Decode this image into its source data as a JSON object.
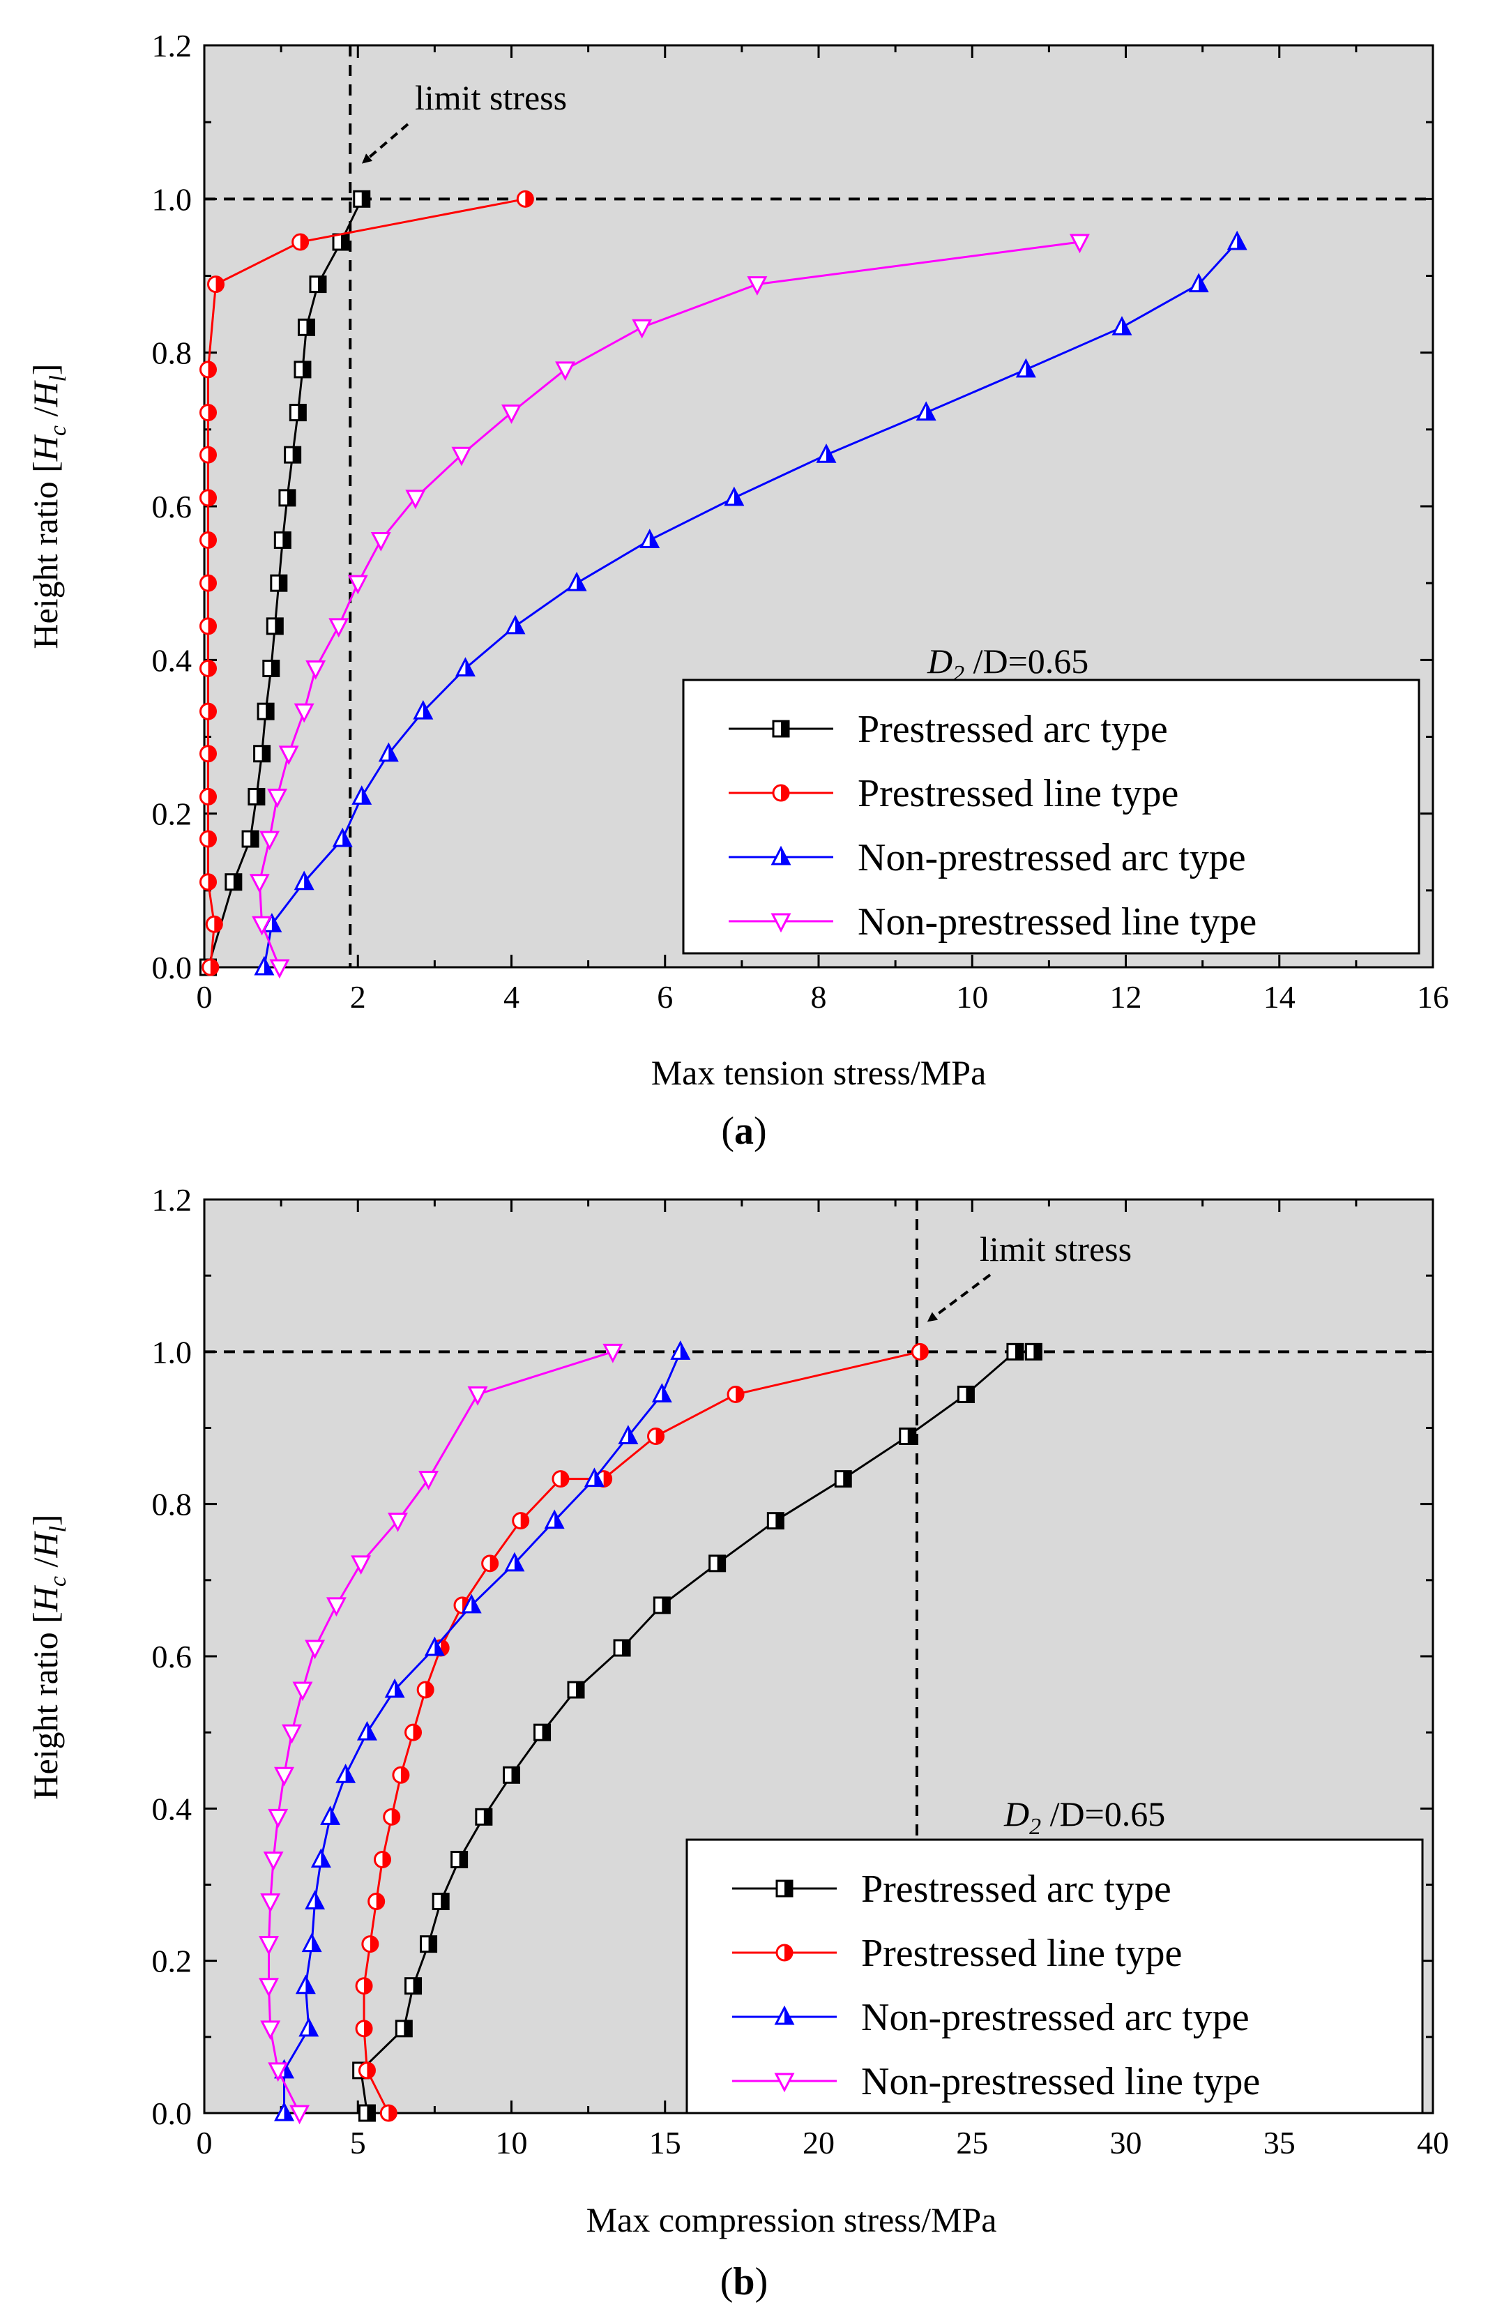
{
  "chart_data": [
    {
      "type": "line",
      "panel_label": "a",
      "xlabel": "Max tension stress/MPa",
      "ylabel_prefix": "Height ratio [",
      "ylabel_hc": "H",
      "ylabel_hc_sub": "c",
      "ylabel_sep": " /",
      "ylabel_hl": "H",
      "ylabel_hl_sub": "l",
      "ylabel_suffix": "]",
      "xlim": [
        0,
        16
      ],
      "ylim": [
        0,
        1.2
      ],
      "xticks": [
        0,
        2,
        4,
        6,
        8,
        10,
        12,
        14,
        16
      ],
      "yticks": [
        0.0,
        0.2,
        0.4,
        0.6,
        0.8,
        1.0,
        1.2
      ],
      "xtick_labels": [
        "0",
        "2",
        "4",
        "6",
        "8",
        "10",
        "12",
        "14",
        "16"
      ],
      "ytick_labels": [
        "0.0",
        "0.2",
        "0.4",
        "0.6",
        "0.8",
        "1.0",
        "1.2"
      ],
      "background": "#d9d9d9",
      "limit_line_x": 1.9,
      "limit_line_y": 1.0,
      "limit_annotation": "limit stress",
      "ratio_d2": "D",
      "ratio_d2_sub": "2",
      "ratio_rest": " /D=0.65",
      "legend_position": "lower-right",
      "series": [
        {
          "name": "Prestressed arc type",
          "color": "#000000",
          "marker": "square-half",
          "x": [
            0.05,
            0.38,
            0.6,
            0.68,
            0.75,
            0.8,
            0.87,
            0.92,
            0.97,
            1.02,
            1.08,
            1.15,
            1.22,
            1.28,
            1.33,
            1.48,
            1.78,
            2.05
          ],
          "y": [
            0.0,
            0.111,
            0.167,
            0.222,
            0.278,
            0.333,
            0.389,
            0.444,
            0.5,
            0.556,
            0.611,
            0.667,
            0.722,
            0.778,
            0.833,
            0.889,
            0.944,
            1.0
          ]
        },
        {
          "name": "Prestressed line type",
          "color": "#ff0000",
          "marker": "circle-half",
          "x": [
            0.08,
            0.13,
            0.05,
            0.05,
            0.05,
            0.05,
            0.05,
            0.05,
            0.05,
            0.05,
            0.05,
            0.05,
            0.05,
            0.05,
            0.05,
            0.15,
            1.25,
            4.18
          ],
          "y": [
            0.0,
            0.056,
            0.111,
            0.167,
            0.222,
            0.278,
            0.333,
            0.389,
            0.444,
            0.5,
            0.556,
            0.611,
            0.667,
            0.722,
            0.778,
            0.889,
            0.944,
            1.0
          ]
        },
        {
          "name": "Non-prestressed arc type",
          "color": "#0000ff",
          "marker": "triangle-up",
          "x": [
            0.78,
            0.88,
            1.3,
            1.8,
            2.05,
            2.4,
            2.85,
            3.4,
            4.05,
            4.85,
            5.8,
            6.9,
            8.1,
            9.4,
            10.7,
            11.95,
            12.95,
            13.45
          ],
          "y": [
            0.0,
            0.056,
            0.111,
            0.167,
            0.222,
            0.278,
            0.333,
            0.389,
            0.444,
            0.5,
            0.556,
            0.611,
            0.667,
            0.722,
            0.778,
            0.833,
            0.889,
            0.944
          ]
        },
        {
          "name": "Non-prestressed line type",
          "color": "#ff00ff",
          "marker": "triangle-down",
          "x": [
            0.98,
            0.75,
            0.72,
            0.85,
            0.95,
            1.1,
            1.3,
            1.45,
            1.75,
            2.0,
            2.3,
            2.75,
            3.35,
            4.0,
            4.7,
            5.7,
            7.2,
            11.4
          ],
          "y": [
            0.0,
            0.056,
            0.111,
            0.167,
            0.222,
            0.278,
            0.333,
            0.389,
            0.444,
            0.5,
            0.556,
            0.611,
            0.667,
            0.722,
            0.778,
            0.833,
            0.889,
            0.944
          ]
        }
      ]
    },
    {
      "type": "line",
      "panel_label": "b",
      "xlabel": "Max compression stress/MPa",
      "ylabel_prefix": "Height ratio [",
      "ylabel_hc": "H",
      "ylabel_hc_sub": "c",
      "ylabel_sep": " /",
      "ylabel_hl": "H",
      "ylabel_hl_sub": "l",
      "ylabel_suffix": "]",
      "xlim": [
        0,
        40
      ],
      "ylim": [
        0,
        1.2
      ],
      "xticks": [
        0,
        5,
        10,
        15,
        20,
        25,
        30,
        35,
        40
      ],
      "yticks": [
        0.0,
        0.2,
        0.4,
        0.6,
        0.8,
        1.0,
        1.2
      ],
      "xtick_labels": [
        "0",
        "5",
        "10",
        "15",
        "20",
        "25",
        "30",
        "35",
        "40"
      ],
      "ytick_labels": [
        "0.0",
        "0.2",
        "0.4",
        "0.6",
        "0.8",
        "1.0",
        "1.2"
      ],
      "background": "#d9d9d9",
      "limit_line_x": 23.2,
      "limit_line_y": 1.0,
      "limit_annotation": "limit stress",
      "ratio_d2": "D",
      "ratio_d2_sub": "2",
      "ratio_rest": " /D=0.65",
      "legend_position": "lower-right",
      "series": [
        {
          "name": "Prestressed arc type",
          "color": "#000000",
          "marker": "square-half",
          "x": [
            5.3,
            5.1,
            6.5,
            6.8,
            7.3,
            7.7,
            8.3,
            9.1,
            10.0,
            11.0,
            12.1,
            13.6,
            14.9,
            16.7,
            18.6,
            20.8,
            22.9,
            24.8,
            26.4,
            27.0
          ],
          "y": [
            0.0,
            0.056,
            0.111,
            0.167,
            0.222,
            0.278,
            0.333,
            0.389,
            0.444,
            0.5,
            0.556,
            0.611,
            0.667,
            0.722,
            0.778,
            0.833,
            0.889,
            0.944,
            1.0,
            1.0
          ]
        },
        {
          "name": "Prestressed line type",
          "color": "#ff0000",
          "marker": "circle-half",
          "x": [
            6.0,
            5.3,
            5.2,
            5.2,
            5.4,
            5.6,
            5.8,
            6.1,
            6.4,
            6.8,
            7.2,
            7.7,
            8.4,
            9.3,
            10.3,
            11.6,
            13.0,
            14.7,
            17.3,
            23.3
          ],
          "y": [
            0.0,
            0.056,
            0.111,
            0.167,
            0.222,
            0.278,
            0.333,
            0.389,
            0.444,
            0.5,
            0.556,
            0.611,
            0.667,
            0.722,
            0.778,
            0.833,
            0.833,
            0.889,
            0.944,
            1.0
          ]
        },
        {
          "name": "Non-prestressed arc type",
          "color": "#0000ff",
          "marker": "triangle-up",
          "x": [
            2.6,
            2.6,
            3.4,
            3.3,
            3.5,
            3.6,
            3.8,
            4.1,
            4.6,
            5.3,
            6.2,
            7.5,
            8.7,
            10.1,
            11.4,
            12.7,
            13.8,
            14.9,
            15.5
          ],
          "y": [
            0.0,
            0.056,
            0.111,
            0.167,
            0.222,
            0.278,
            0.333,
            0.389,
            0.444,
            0.5,
            0.556,
            0.611,
            0.667,
            0.722,
            0.778,
            0.833,
            0.889,
            0.944,
            1.0
          ]
        },
        {
          "name": "Non-prestressed line type",
          "color": "#ff00ff",
          "marker": "triangle-down",
          "x": [
            3.1,
            2.4,
            2.15,
            2.1,
            2.1,
            2.15,
            2.25,
            2.4,
            2.6,
            2.85,
            3.2,
            3.6,
            4.3,
            5.1,
            6.3,
            7.3,
            8.9,
            13.3
          ],
          "y": [
            0.0,
            0.056,
            0.111,
            0.167,
            0.222,
            0.278,
            0.333,
            0.389,
            0.444,
            0.5,
            0.556,
            0.611,
            0.667,
            0.722,
            0.778,
            0.833,
            0.944,
            1.0
          ]
        }
      ]
    }
  ]
}
